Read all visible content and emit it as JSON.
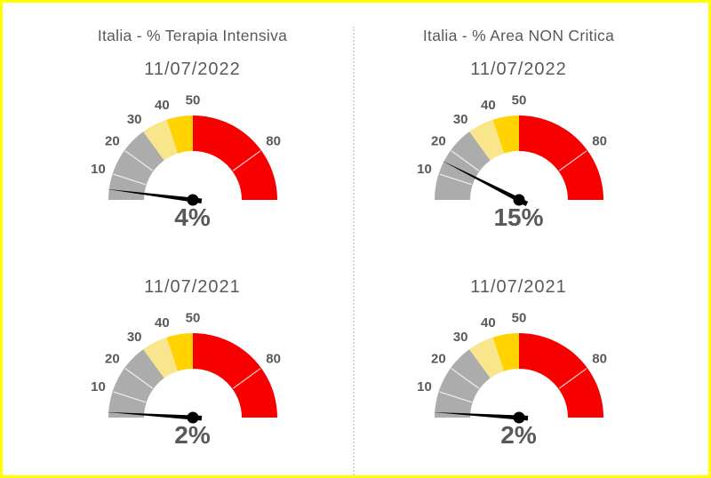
{
  "page": {
    "background": "#FFFFFF",
    "border_color": "#FFFF00",
    "divider_color": "#DCDCDC",
    "text_color": "#595959"
  },
  "chart_data": [
    {
      "type": "gauge",
      "position": "top-left",
      "title": "Italia - % Terapia Intensiva",
      "date": "11/07/2022",
      "value": 4,
      "value_label": "4%",
      "min": 0,
      "max": 100,
      "segments": [
        {
          "from": 0,
          "to": 30,
          "color": "#ACACAC"
        },
        {
          "from": 30,
          "to": 40,
          "color": "#F8E58C"
        },
        {
          "from": 40,
          "to": 50,
          "color": "#FFD200"
        },
        {
          "from": 50,
          "to": 100,
          "color": "#F60000"
        }
      ],
      "ticks": [
        {
          "value": 10,
          "label": "10",
          "line": true
        },
        {
          "value": 20,
          "label": "20",
          "line": true
        },
        {
          "value": 30,
          "label": "30",
          "line": false
        },
        {
          "value": 40,
          "label": "40",
          "line": false
        },
        {
          "value": 50,
          "label": "50",
          "line": false
        },
        {
          "value": 80,
          "label": "80",
          "line": true
        }
      ],
      "needle_color": "#000000"
    },
    {
      "type": "gauge",
      "position": "top-right",
      "title": "Italia - % Area NON Critica",
      "date": "11/07/2022",
      "value": 15,
      "value_label": "15%",
      "min": 0,
      "max": 100,
      "segments": [
        {
          "from": 0,
          "to": 30,
          "color": "#ACACAC"
        },
        {
          "from": 30,
          "to": 40,
          "color": "#F8E58C"
        },
        {
          "from": 40,
          "to": 50,
          "color": "#FFD200"
        },
        {
          "from": 50,
          "to": 100,
          "color": "#F60000"
        }
      ],
      "ticks": [
        {
          "value": 10,
          "label": "10",
          "line": true
        },
        {
          "value": 20,
          "label": "20",
          "line": true
        },
        {
          "value": 30,
          "label": "30",
          "line": false
        },
        {
          "value": 40,
          "label": "40",
          "line": false
        },
        {
          "value": 50,
          "label": "50",
          "line": false
        },
        {
          "value": 80,
          "label": "80",
          "line": true
        }
      ],
      "needle_color": "#000000"
    },
    {
      "type": "gauge",
      "position": "bottom-left",
      "date": "11/07/2021",
      "value": 2,
      "value_label": "2%",
      "min": 0,
      "max": 100,
      "segments": [
        {
          "from": 0,
          "to": 30,
          "color": "#ACACAC"
        },
        {
          "from": 30,
          "to": 40,
          "color": "#F8E58C"
        },
        {
          "from": 40,
          "to": 50,
          "color": "#FFD200"
        },
        {
          "from": 50,
          "to": 100,
          "color": "#F60000"
        }
      ],
      "ticks": [
        {
          "value": 10,
          "label": "10",
          "line": true
        },
        {
          "value": 20,
          "label": "20",
          "line": true
        },
        {
          "value": 30,
          "label": "30",
          "line": false
        },
        {
          "value": 40,
          "label": "40",
          "line": false
        },
        {
          "value": 50,
          "label": "50",
          "line": false
        },
        {
          "value": 80,
          "label": "80",
          "line": true
        }
      ],
      "needle_color": "#000000"
    },
    {
      "type": "gauge",
      "position": "bottom-right",
      "date": "11/07/2021",
      "value": 2,
      "value_label": "2%",
      "min": 0,
      "max": 100,
      "segments": [
        {
          "from": 0,
          "to": 30,
          "color": "#ACACAC"
        },
        {
          "from": 30,
          "to": 40,
          "color": "#F8E58C"
        },
        {
          "from": 40,
          "to": 50,
          "color": "#FFD200"
        },
        {
          "from": 50,
          "to": 100,
          "color": "#F60000"
        }
      ],
      "ticks": [
        {
          "value": 10,
          "label": "10",
          "line": true
        },
        {
          "value": 20,
          "label": "20",
          "line": true
        },
        {
          "value": 30,
          "label": "30",
          "line": false
        },
        {
          "value": 40,
          "label": "40",
          "line": false
        },
        {
          "value": 50,
          "label": "50",
          "line": false
        },
        {
          "value": 80,
          "label": "80",
          "line": true
        }
      ],
      "needle_color": "#000000"
    }
  ]
}
